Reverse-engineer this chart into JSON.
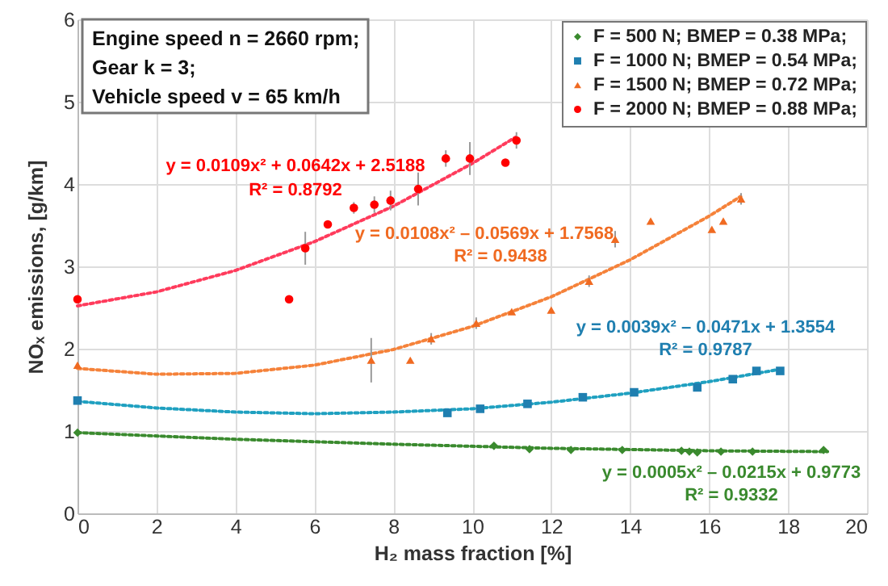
{
  "chart_data": {
    "type": "scatter",
    "xlabel": "H₂ mass fraction [%]",
    "ylabel": "NOₓ emissions, [g/km]",
    "xlim": [
      0,
      20
    ],
    "xticks": [
      0,
      2,
      4,
      6,
      8,
      10,
      12,
      14,
      16,
      18,
      20
    ],
    "ylim": [
      0,
      6
    ],
    "yticks": [
      0,
      1,
      2,
      3,
      4,
      5,
      6
    ],
    "grid": true,
    "legend": "top right",
    "annotations": [
      "Engine speed n = 2660 rpm;",
      "Gear k = 3;",
      "Vehicle speed v = 65 km/h",
      "y = 0.0109x² + 0.0642x + 2.5188",
      "R² = 0.8792",
      "y = 0.0108x² – 0.0569x + 1.7568",
      "R² = 0.9438",
      "y = 0.0039x² – 0.0471x + 1.3554",
      "R² = 0.9787",
      "y = 0.0005x² – 0.0215x + 0.9773",
      "R² = 0.9332"
    ],
    "series": [
      {
        "name": "F = 500 N; BMEP = 0.38 MPa;",
        "color": "#3a8a2e",
        "marker": "diamond",
        "x": [
          0,
          10.55,
          11.45,
          12.5,
          13.8,
          15.3,
          15.5,
          15.7,
          16.3,
          17.1,
          18.9
        ],
        "values": [
          0.98,
          0.82,
          0.78,
          0.77,
          0.77,
          0.76,
          0.75,
          0.74,
          0.75,
          0.75,
          0.77
        ]
      },
      {
        "name": "F = 1000 N; BMEP = 0.54 MPa;",
        "color": "#1f7fb0",
        "marker": "square",
        "x": [
          0,
          9.37,
          10.2,
          11.4,
          12.8,
          14.1,
          15.7,
          16.6,
          17.2,
          17.8
        ],
        "values": [
          1.37,
          1.22,
          1.27,
          1.33,
          1.41,
          1.47,
          1.53,
          1.63,
          1.73,
          1.73
        ]
      },
      {
        "name": "F = 1500 N; BMEP = 0.72 MPa;",
        "color": "#f06a21",
        "marker": "triangle",
        "x": [
          0,
          7.44,
          8.43,
          8.96,
          10.1,
          11.0,
          12.0,
          12.96,
          13.62,
          14.52,
          16.07,
          16.36,
          16.81
        ],
        "values": [
          1.8,
          1.86,
          1.86,
          2.12,
          2.31,
          2.45,
          2.47,
          2.82,
          3.33,
          3.55,
          3.45,
          3.55,
          3.82
        ],
        "errors": [
          null,
          0.27,
          null,
          0.07,
          0.07,
          null,
          null,
          0.07,
          0.1,
          null,
          null,
          null,
          0.07
        ]
      },
      {
        "name": "F = 2000 N; BMEP = 0.88 MPa;",
        "color": "#ff0000",
        "marker": "circle",
        "x": [
          0,
          5.36,
          5.77,
          6.34,
          7.0,
          7.52,
          7.93,
          8.63,
          9.33,
          9.94,
          10.84,
          11.12
        ],
        "values": [
          2.6,
          2.6,
          3.22,
          3.51,
          3.71,
          3.75,
          3.8,
          3.94,
          4.31,
          4.31,
          4.26,
          4.53
        ],
        "errors": [
          null,
          null,
          0.2,
          null,
          0.07,
          0.1,
          0.12,
          0.2,
          0.1,
          0.2,
          null,
          0.1
        ]
      },
      {
        "type": "line",
        "color": "#3a8a2e",
        "line_style": "dotted",
        "x": [
          0,
          4,
          8,
          12,
          16,
          19
        ],
        "values": [
          0.98,
          0.9,
          0.84,
          0.79,
          0.76,
          0.75
        ]
      },
      {
        "type": "line",
        "color": "#1fa0c0",
        "line_style": "dotted",
        "x": [
          0,
          2,
          4,
          6,
          8,
          10,
          12,
          14,
          16,
          17.8
        ],
        "values": [
          1.36,
          1.28,
          1.23,
          1.21,
          1.23,
          1.27,
          1.35,
          1.46,
          1.6,
          1.75
        ]
      },
      {
        "type": "line",
        "color": "#f5823a",
        "line_style": "dotted",
        "x": [
          0,
          2,
          4,
          6,
          8,
          10,
          12,
          14,
          16,
          16.8
        ],
        "values": [
          1.76,
          1.69,
          1.7,
          1.8,
          1.99,
          2.27,
          2.63,
          3.08,
          3.61,
          3.85
        ]
      },
      {
        "type": "line",
        "color": "#ff3b5c",
        "line_style": "dotted",
        "x": [
          0,
          2,
          4,
          6,
          8,
          10,
          11.1
        ],
        "values": [
          2.52,
          2.69,
          2.95,
          3.3,
          3.73,
          4.25,
          4.57
        ]
      }
    ]
  }
}
